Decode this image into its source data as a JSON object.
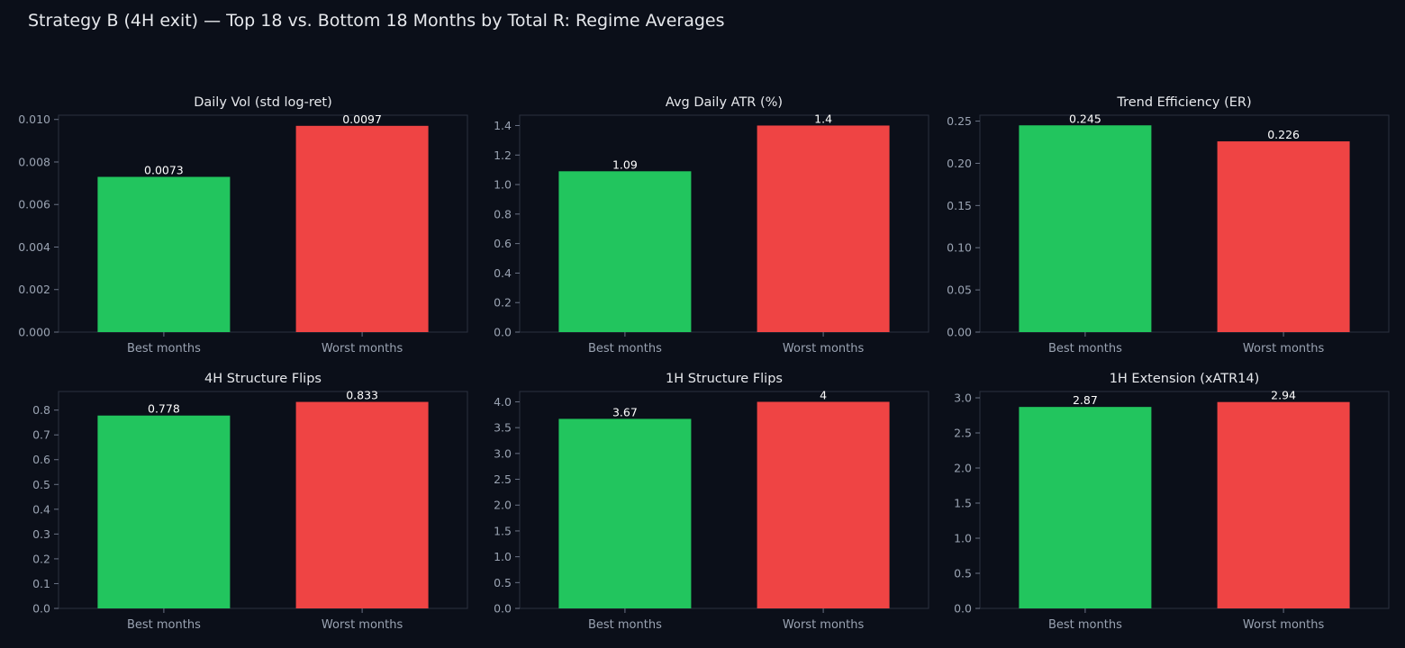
{
  "title": "Strategy B (4H exit) — Top 18 vs. Bottom 18 Months by Total R: Regime Averages",
  "colors": {
    "best": "#22c55e",
    "worst": "#ef4444",
    "background": "#0b0f19",
    "text": "#e6e8ec",
    "tick_text": "#9aa3b2"
  },
  "chart_data": [
    {
      "type": "bar",
      "title": "Daily Vol (std log-ret)",
      "categories": [
        "Best months",
        "Worst months"
      ],
      "values": [
        0.0073,
        0.0097
      ],
      "value_labels": [
        "0.0073",
        "0.0097"
      ],
      "yticks": [
        "0.000",
        "0.002",
        "0.004",
        "0.006",
        "0.008",
        "0.010"
      ],
      "ylim": [
        0,
        0.0102
      ]
    },
    {
      "type": "bar",
      "title": "Avg Daily ATR (%)",
      "categories": [
        "Best months",
        "Worst months"
      ],
      "values": [
        1.09,
        1.4
      ],
      "value_labels": [
        "1.09",
        "1.4"
      ],
      "yticks": [
        "0.0",
        "0.2",
        "0.4",
        "0.6",
        "0.8",
        "1.0",
        "1.2",
        "1.4"
      ],
      "ylim": [
        0,
        1.47
      ]
    },
    {
      "type": "bar",
      "title": "Trend Efficiency (ER)",
      "categories": [
        "Best months",
        "Worst months"
      ],
      "values": [
        0.245,
        0.226
      ],
      "value_labels": [
        "0.245",
        "0.226"
      ],
      "yticks": [
        "0.00",
        "0.05",
        "0.10",
        "0.15",
        "0.20",
        "0.25"
      ],
      "ylim": [
        0,
        0.257
      ]
    },
    {
      "type": "bar",
      "title": "4H Structure Flips",
      "categories": [
        "Best months",
        "Worst months"
      ],
      "values": [
        0.778,
        0.833
      ],
      "value_labels": [
        "0.778",
        "0.833"
      ],
      "yticks": [
        "0.0",
        "0.1",
        "0.2",
        "0.3",
        "0.4",
        "0.5",
        "0.6",
        "0.7",
        "0.8"
      ],
      "ylim": [
        0,
        0.875
      ]
    },
    {
      "type": "bar",
      "title": "1H Structure Flips",
      "categories": [
        "Best months",
        "Worst months"
      ],
      "values": [
        3.67,
        4
      ],
      "value_labels": [
        "3.67",
        "4"
      ],
      "yticks": [
        "0.0",
        "0.5",
        "1.0",
        "1.5",
        "2.0",
        "2.5",
        "3.0",
        "3.5",
        "4.0"
      ],
      "ylim": [
        0,
        4.2
      ]
    },
    {
      "type": "bar",
      "title": "1H Extension (xATR14)",
      "categories": [
        "Best months",
        "Worst months"
      ],
      "values": [
        2.87,
        2.94
      ],
      "value_labels": [
        "2.87",
        "2.94"
      ],
      "yticks": [
        "0.0",
        "0.5",
        "1.0",
        "1.5",
        "2.0",
        "2.5",
        "3.0"
      ],
      "ylim": [
        0,
        3.09
      ]
    }
  ]
}
